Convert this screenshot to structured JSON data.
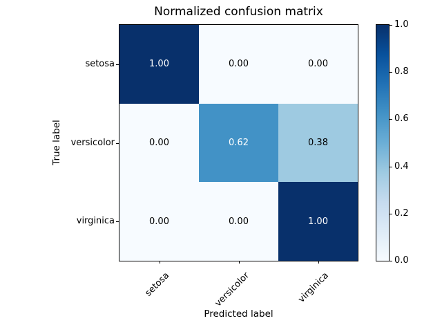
{
  "chart_data": {
    "type": "heatmap",
    "title": "Normalized confusion matrix",
    "xlabel": "Predicted label",
    "ylabel": "True label",
    "x_categories": [
      "setosa",
      "versicolor",
      "virginica"
    ],
    "y_categories": [
      "setosa",
      "versicolor",
      "virginica"
    ],
    "values": [
      [
        1.0,
        0.0,
        0.0
      ],
      [
        0.0,
        0.62,
        0.38
      ],
      [
        0.0,
        0.0,
        1.0
      ]
    ],
    "cell_labels": [
      [
        "1.00",
        "0.00",
        "0.00"
      ],
      [
        "0.00",
        "0.62",
        "0.38"
      ],
      [
        "0.00",
        "0.00",
        "1.00"
      ]
    ],
    "cell_colors": [
      [
        "#08306b",
        "#f7fbff",
        "#f7fbff"
      ],
      [
        "#f7fbff",
        "#4292c6",
        "#9ecae1"
      ],
      [
        "#f7fbff",
        "#f7fbff",
        "#08306b"
      ]
    ],
    "cell_text_colors": [
      [
        "#ffffff",
        "#000000",
        "#000000"
      ],
      [
        "#000000",
        "#ffffff",
        "#000000"
      ],
      [
        "#000000",
        "#000000",
        "#ffffff"
      ]
    ],
    "colormap": "Blues",
    "grid": false,
    "value_range": [
      0,
      1
    ],
    "colorbar": {
      "position": "right",
      "tick_labels": [
        "1.0",
        "0.8",
        "0.6",
        "0.4",
        "0.2",
        "0.0"
      ],
      "gradient_top_to_bottom": [
        "#08306b",
        "#08519c",
        "#2171b5",
        "#4292c6",
        "#6baed6",
        "#9ecae1",
        "#c6dbef",
        "#deebf7",
        "#f7fbff"
      ]
    }
  }
}
